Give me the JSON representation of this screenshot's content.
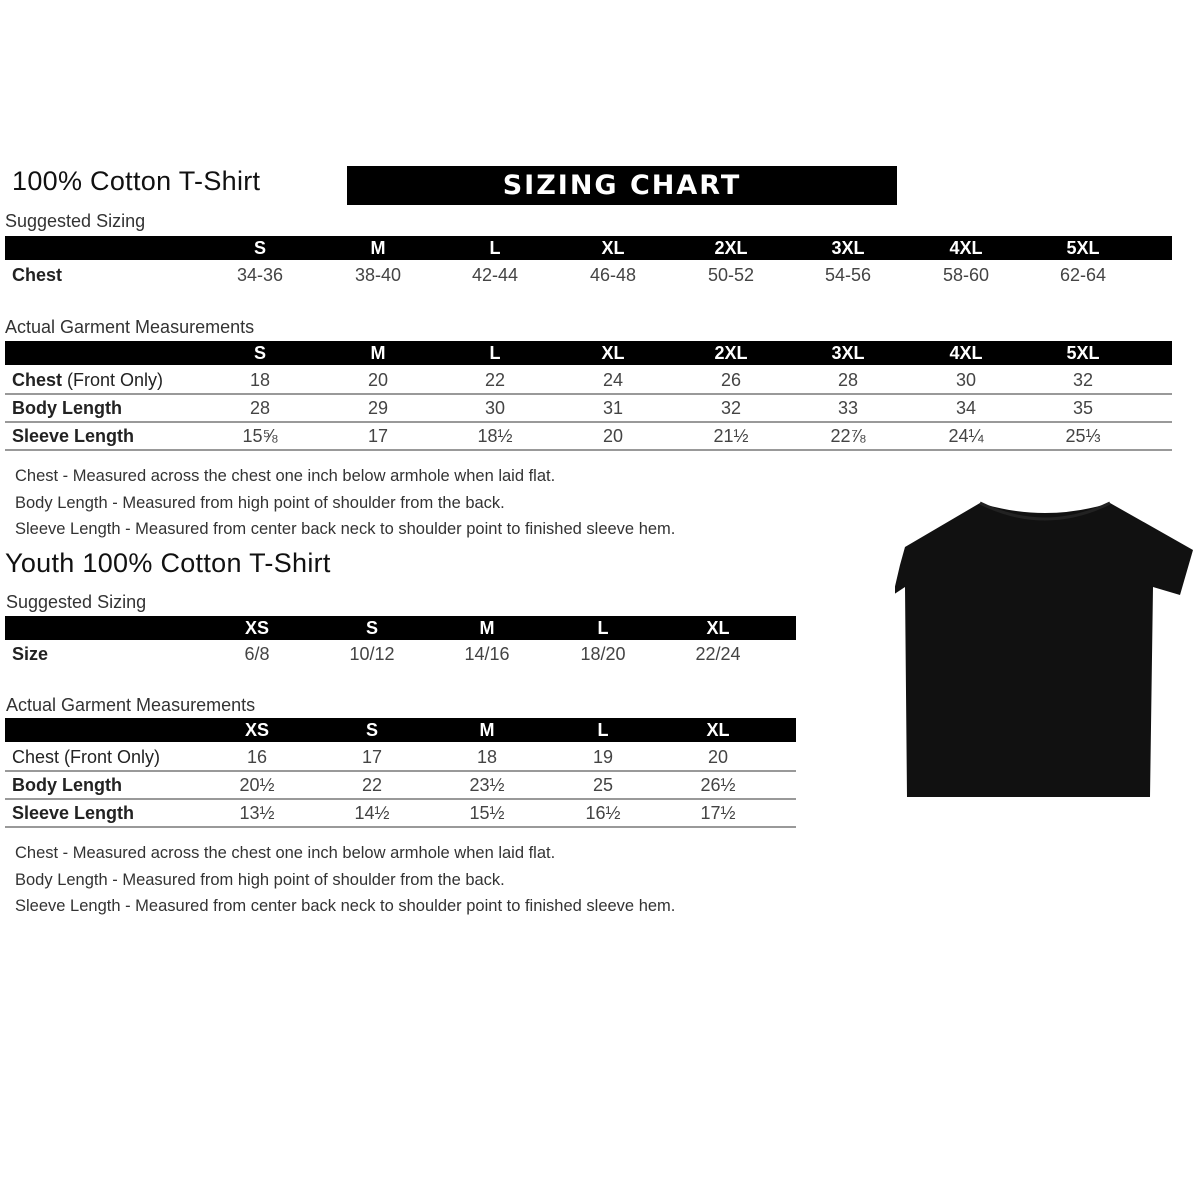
{
  "adult": {
    "title": "100% Cotton T-Shirt",
    "banner": "SIZING CHART",
    "suggested_label": "Suggested Sizing",
    "sizes": [
      "S",
      "M",
      "L",
      "XL",
      "2XL",
      "3XL",
      "4XL",
      "5XL"
    ],
    "suggested_rows": [
      {
        "label": "Chest",
        "values": [
          "34-36",
          "38-40",
          "42-44",
          "46-48",
          "50-52",
          "54-56",
          "58-60",
          "62-64"
        ]
      }
    ],
    "actual_label": "Actual Garment Measurements",
    "actual_rows": [
      {
        "label": "Chest",
        "sub": " (Front Only)",
        "values": [
          "18",
          "20",
          "22",
          "24",
          "26",
          "28",
          "30",
          "32"
        ]
      },
      {
        "label": "Body Length",
        "sub": "",
        "values": [
          "28",
          "29",
          "30",
          "31",
          "32",
          "33",
          "34",
          "35"
        ]
      },
      {
        "label": "Sleeve Length",
        "sub": "",
        "values": [
          "15⅝",
          "17",
          "18½",
          "20",
          "21½",
          "22⅞",
          "24¼",
          "25⅓"
        ]
      }
    ],
    "notes": [
      "Chest - Measured across the chest one inch below armhole when laid flat.",
      "Body Length - Measured from high point of shoulder from the back.",
      "Sleeve Length - Measured from center back neck to shoulder point to finished sleeve hem."
    ]
  },
  "youth": {
    "title": "Youth 100% Cotton T-Shirt",
    "suggested_label": "Suggested Sizing",
    "sizes": [
      "XS",
      "S",
      "M",
      "L",
      "XL"
    ],
    "suggested_rows": [
      {
        "label": "Size",
        "values": [
          "6/8",
          "10/12",
          "14/16",
          "18/20",
          "22/24"
        ]
      }
    ],
    "actual_label": "Actual Garment Measurements",
    "actual_rows": [
      {
        "label": "Chest (Front Only)",
        "sub": "",
        "values": [
          "16",
          "17",
          "18",
          "19",
          "20"
        ]
      },
      {
        "label": "Body Length",
        "sub": "",
        "values": [
          "20½",
          "22",
          "23½",
          "25",
          "26½"
        ]
      },
      {
        "label": "Sleeve Length",
        "sub": "",
        "values": [
          "13½",
          "14½",
          "15½",
          "16½",
          "17½"
        ]
      }
    ],
    "notes": [
      "Chest - Measured across the chest one inch below armhole when laid flat.",
      "Body Length - Measured from high point of shoulder from the back.",
      "Sleeve Length - Measured from center back neck to shoulder point to finished sleeve hem."
    ]
  },
  "image": {
    "icon": "black-tshirt-icon",
    "color": "#111111"
  }
}
